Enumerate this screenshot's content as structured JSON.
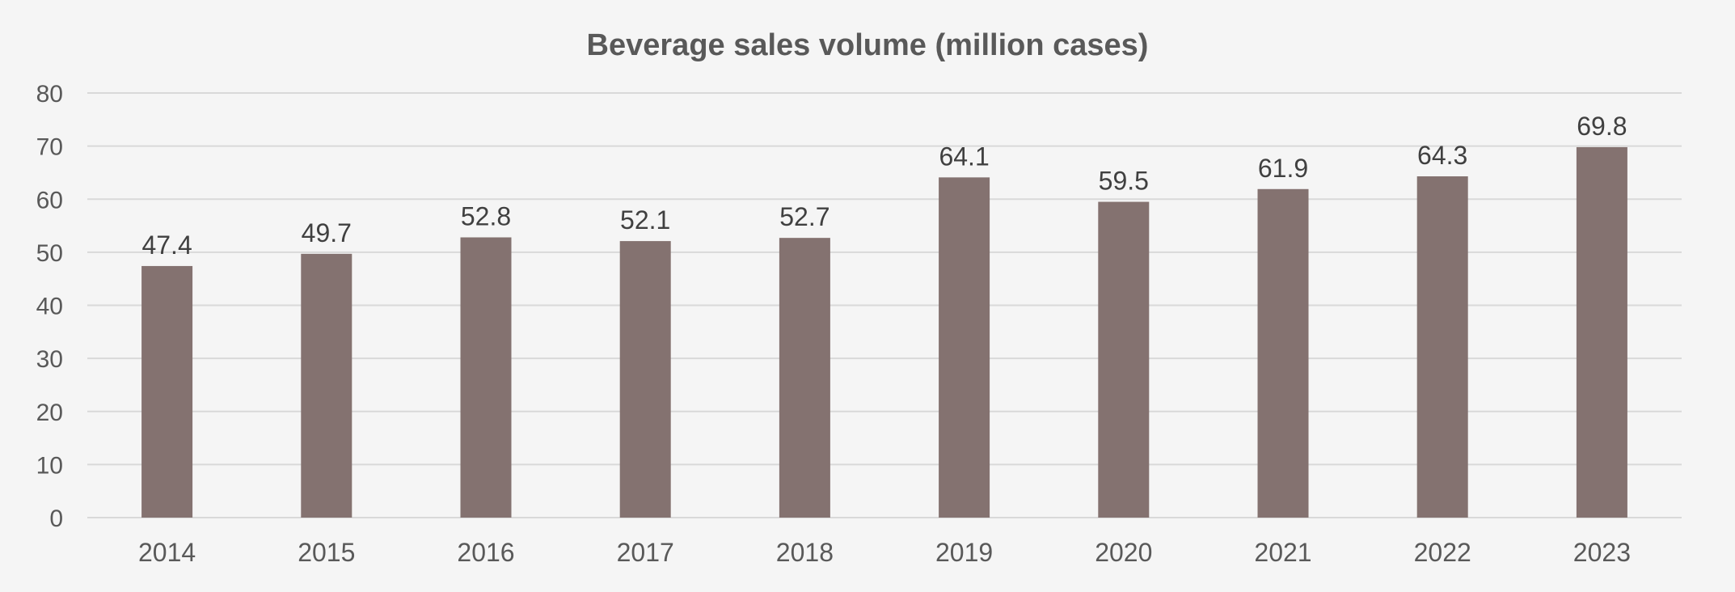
{
  "chart_data": {
    "type": "bar",
    "title": "Beverage sales volume (million cases)",
    "xlabel": "",
    "ylabel": "",
    "categories": [
      "2014",
      "2015",
      "2016",
      "2017",
      "2018",
      "2019",
      "2020",
      "2021",
      "2022",
      "2023"
    ],
    "values": [
      47.4,
      49.7,
      52.8,
      52.1,
      52.7,
      64.1,
      59.5,
      61.9,
      64.3,
      69.8
    ],
    "data_labels": [
      "47.4",
      "49.7",
      "52.8",
      "52.1",
      "52.7",
      "64.1",
      "59.5",
      "61.9",
      "64.3",
      "69.8"
    ],
    "ylim": [
      0,
      80
    ],
    "yticks": [
      0,
      10,
      20,
      30,
      40,
      50,
      60,
      70,
      80
    ],
    "ytick_labels": [
      "0",
      "10",
      "20",
      "30",
      "40",
      "50",
      "60",
      "70",
      "80"
    ],
    "grid": true,
    "legend": "none",
    "colors": {
      "bar": "#847270",
      "background": "#f5f5f5",
      "grid": "#d9d9d9",
      "text": "#595959"
    }
  }
}
